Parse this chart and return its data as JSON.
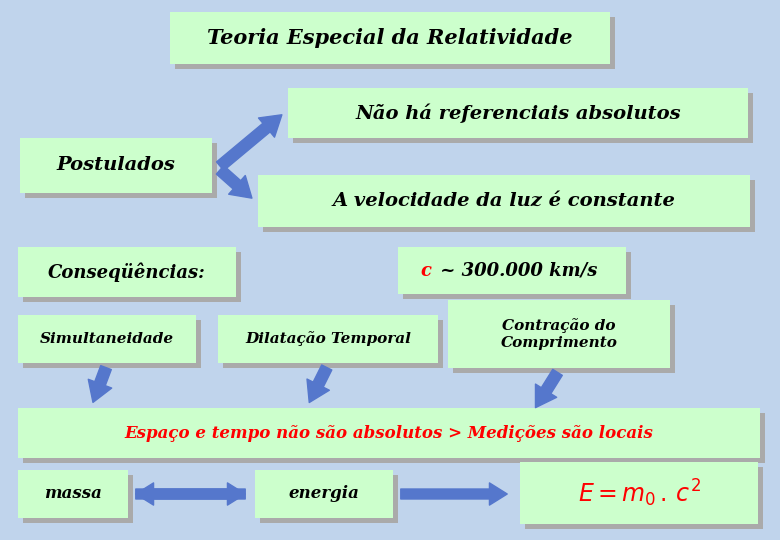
{
  "bg_color": "#c0d4ec",
  "box_fill": "#ccffcc",
  "box_edge": "#ccffcc",
  "shadow_color": "#aaaaaa",
  "arrow_color": "#5577cc",
  "title": "Teoria Especial da Relatividade",
  "postulados_label": "Postulados",
  "postulado1": "Não há referenciais absolutos",
  "postulado2": "A velocidade da luz é constante",
  "consequencias_label": "Conseqüências:",
  "c_label_red": "c",
  "c_label_black": " ~ 300.000 km/s",
  "simul": "Simultaneidade",
  "dilat": "Dilatação Temporal",
  "contrac": "Contração do\nComprimento",
  "espaco": "Espaço e tempo não são absolutos > Medições são locais",
  "massa": "massa",
  "energia": "energia"
}
